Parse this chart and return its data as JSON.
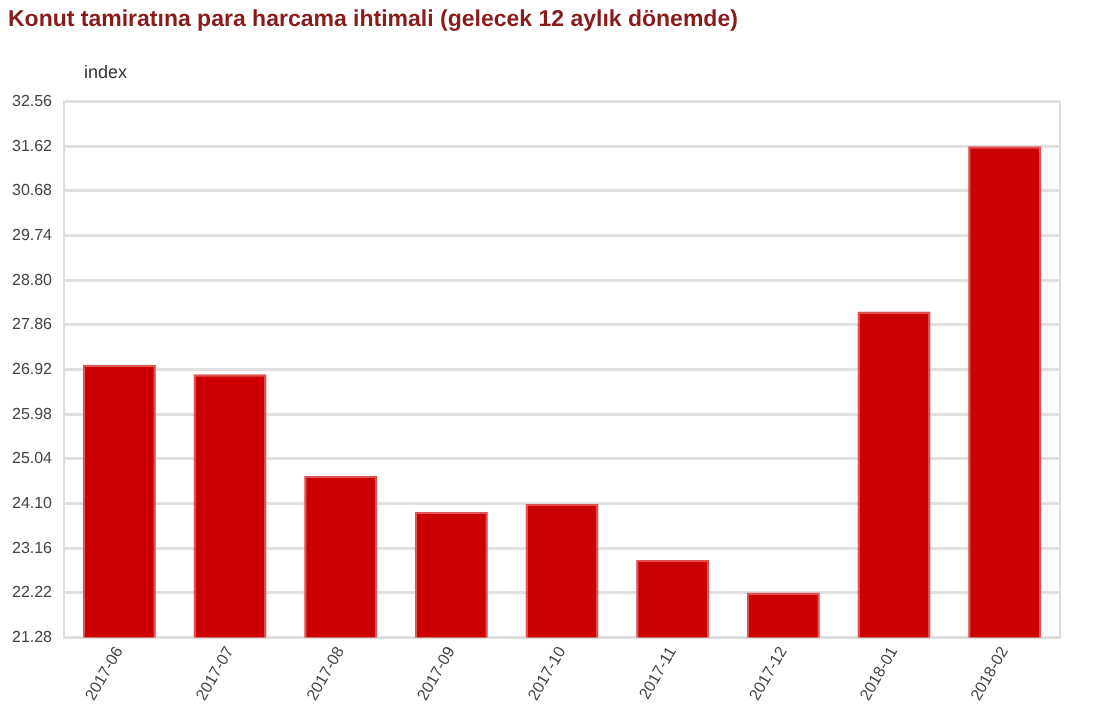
{
  "chart_data": {
    "type": "bar",
    "title": "Konut tamiratına para harcama ihtimali (gelecek 12 aylık dönemde)",
    "ylabel": "index",
    "categories": [
      "2017-06",
      "2017-07",
      "2017-08",
      "2017-09",
      "2017-10",
      "2017-11",
      "2017-12",
      "2018-01",
      "2018-02"
    ],
    "values": [
      27.02,
      26.82,
      24.68,
      23.93,
      24.09,
      22.91,
      22.23,
      28.14,
      31.62
    ],
    "color": "#cc0000",
    "ylim": [
      21.28,
      32.56
    ],
    "yticks": [
      {
        "value": 21.28,
        "label": "21.28"
      },
      {
        "value": 22.22,
        "label": "22.22"
      },
      {
        "value": 23.16,
        "label": "23.16"
      },
      {
        "value": 24.1,
        "label": "24.10"
      },
      {
        "value": 25.04,
        "label": "25.04"
      },
      {
        "value": 25.98,
        "label": "25.98"
      },
      {
        "value": 26.92,
        "label": "26.92"
      },
      {
        "value": 27.86,
        "label": "27.86"
      },
      {
        "value": 28.8,
        "label": "28.80"
      },
      {
        "value": 29.74,
        "label": "29.74"
      },
      {
        "value": 30.68,
        "label": "30.68"
      },
      {
        "value": 31.62,
        "label": "31.62"
      },
      {
        "value": 32.56,
        "label": "32.56"
      }
    ],
    "grid": "y"
  }
}
